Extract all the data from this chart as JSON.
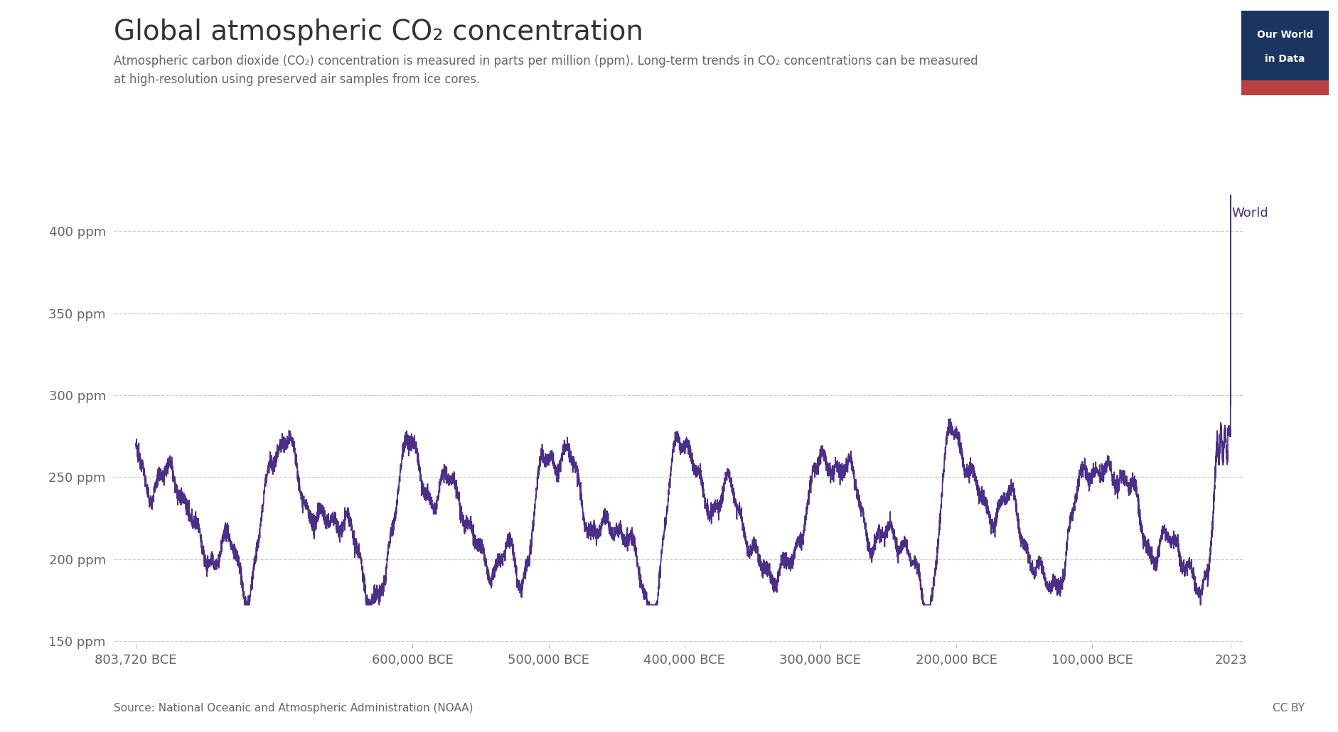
{
  "title": "Global atmospheric CO₂ concentration",
  "subtitle_line1": "Atmospheric carbon dioxide (CO₂) concentration is measured in parts per million (ppm). Long-term trends in CO₂ concentrations can be measured",
  "subtitle_line2": "at high-resolution using preserved air samples from ice cores.",
  "source": "Source: National Oceanic and Atmospheric Administration (NOAA)",
  "cc_label": "CC BY",
  "line_color": "#4b2e8a",
  "background_color": "#ffffff",
  "yticks": [
    150,
    200,
    250,
    300,
    350,
    400
  ],
  "ytick_labels": [
    "150 ppm",
    "200 ppm",
    "250 ppm",
    "300 ppm",
    "350 ppm",
    "400 ppm"
  ],
  "xtick_positions": [
    -803720,
    -600000,
    -500000,
    -400000,
    -300000,
    -200000,
    -100000,
    2023
  ],
  "xtick_labels": [
    "803,720 BCE",
    "600,000 BCE",
    "500,000 BCE",
    "400,000 BCE",
    "300,000 BCE",
    "200,000 BCE",
    "100,000 BCE",
    "2023"
  ],
  "ylim": [
    148,
    425
  ],
  "xlim_left": -820000,
  "xlim_right": 12000,
  "legend_label": "World",
  "owid_box_color": "#1a3560",
  "owid_box_red": "#b84040",
  "title_fontsize": 28,
  "subtitle_fontsize": 12,
  "tick_fontsize": 13,
  "source_fontsize": 11
}
